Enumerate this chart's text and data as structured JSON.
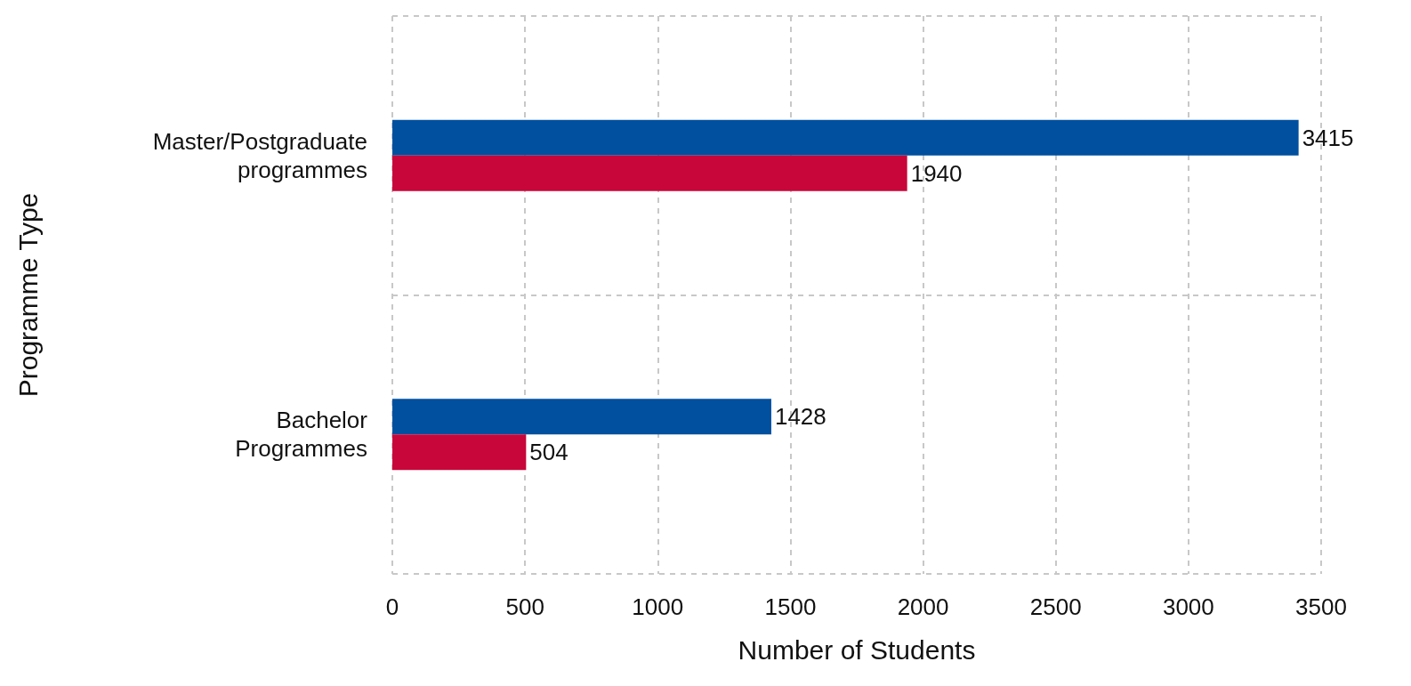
{
  "chart_data": {
    "type": "bar",
    "orientation": "horizontal",
    "xlabel": "Number of Students",
    "ylabel": "Programme Type",
    "categories": [
      "Master/Postgraduate\nprogrammes",
      "Bachelor\nProgrammes"
    ],
    "series": [
      {
        "color": "#00509f",
        "values": [
          3415,
          1428
        ]
      },
      {
        "color": "#c8063a",
        "values": [
          1940,
          504
        ]
      }
    ],
    "xlim": [
      0,
      3500
    ],
    "xticks": [
      0,
      500,
      1000,
      1500,
      2000,
      2500,
      3000,
      3500
    ],
    "grid": true,
    "data_labels": true
  }
}
